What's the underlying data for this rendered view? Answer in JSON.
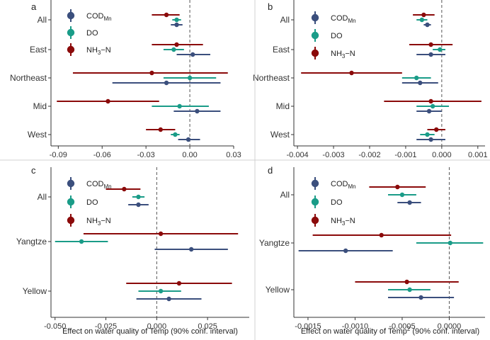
{
  "chart_data": [
    {
      "type": "dot-errorbar",
      "panel": "a",
      "categories": [
        "All",
        "East",
        "Northeast",
        "Mid",
        "West"
      ],
      "xlim": [
        -0.095,
        0.03
      ],
      "xticks": [
        -0.09,
        -0.06,
        -0.03,
        0.0,
        0.03
      ],
      "xtick_labels": [
        "-0.09",
        "-0.06",
        "-0.03",
        "0.00",
        "0.03"
      ],
      "xlabel": "",
      "series": [
        {
          "name": "NH3-N",
          "color": "#8b0a0a",
          "points": [
            {
              "category": "All",
              "value": -0.016,
              "low": -0.026,
              "high": -0.007
            },
            {
              "category": "East",
              "value": -0.009,
              "low": -0.026,
              "high": 0.009
            },
            {
              "category": "Northeast",
              "value": -0.026,
              "low": -0.08,
              "high": 0.026
            },
            {
              "category": "Mid",
              "value": -0.056,
              "low": -0.091,
              "high": -0.021
            },
            {
              "category": "West",
              "value": -0.02,
              "low": -0.03,
              "high": -0.01
            }
          ]
        },
        {
          "name": "DO",
          "color": "#1a9c88",
          "points": [
            {
              "category": "All",
              "value": -0.009,
              "low": -0.012,
              "high": -0.006
            },
            {
              "category": "East",
              "value": -0.011,
              "low": -0.018,
              "high": -0.004
            },
            {
              "category": "Northeast",
              "value": 0.0,
              "low": -0.018,
              "high": 0.018
            },
            {
              "category": "Mid",
              "value": -0.007,
              "low": -0.026,
              "high": 0.013
            },
            {
              "category": "West",
              "value": -0.01,
              "low": -0.013,
              "high": -0.007
            }
          ]
        },
        {
          "name": "CODMn",
          "color": "#3b4f7d",
          "points": [
            {
              "category": "All",
              "value": -0.009,
              "low": -0.013,
              "high": -0.005
            },
            {
              "category": "East",
              "value": 0.002,
              "low": -0.009,
              "high": 0.014
            },
            {
              "category": "Northeast",
              "value": -0.016,
              "low": -0.053,
              "high": 0.021
            },
            {
              "category": "Mid",
              "value": 0.005,
              "low": -0.011,
              "high": 0.021
            },
            {
              "category": "West",
              "value": -0.001,
              "low": -0.008,
              "high": 0.007
            }
          ]
        }
      ]
    },
    {
      "type": "dot-errorbar",
      "panel": "b",
      "categories": [
        "All",
        "East",
        "Northeast",
        "Mid",
        "West"
      ],
      "xlim": [
        -0.0041,
        0.0012
      ],
      "xticks": [
        -0.004,
        -0.003,
        -0.002,
        -0.001,
        0.0,
        0.001
      ],
      "xtick_labels": [
        "-0.004",
        "-0.003",
        "-0.002",
        "-0.001",
        "0.000",
        "0.001"
      ],
      "xlabel": "",
      "series": [
        {
          "name": "NH3-N",
          "color": "#8b0a0a",
          "points": [
            {
              "category": "All",
              "value": -0.0005,
              "low": -0.0008,
              "high": -0.0002
            },
            {
              "category": "East",
              "value": -0.0003,
              "low": -0.0009,
              "high": 0.0003
            },
            {
              "category": "Northeast",
              "value": -0.0025,
              "low": -0.0039,
              "high": -0.0011
            },
            {
              "category": "Mid",
              "value": -0.0003,
              "low": -0.0016,
              "high": 0.0011
            },
            {
              "category": "West",
              "value": -0.00015,
              "low": -0.0004,
              "high": 0.0001
            }
          ]
        },
        {
          "name": "DO",
          "color": "#1a9c88",
          "points": [
            {
              "category": "All",
              "value": -0.00055,
              "low": -0.0007,
              "high": -0.0004
            },
            {
              "category": "East",
              "value": -5e-05,
              "low": -0.00025,
              "high": 0.0001
            },
            {
              "category": "Northeast",
              "value": -0.0007,
              "low": -0.0011,
              "high": -0.0003
            },
            {
              "category": "Mid",
              "value": -0.00025,
              "low": -0.0007,
              "high": 0.0002
            },
            {
              "category": "West",
              "value": -0.0004,
              "low": -0.0006,
              "high": -0.0002
            }
          ]
        },
        {
          "name": "CODMn",
          "color": "#3b4f7d",
          "points": [
            {
              "category": "All",
              "value": -0.0004,
              "low": -0.0005,
              "high": -0.0003
            },
            {
              "category": "East",
              "value": -0.0003,
              "low": -0.0007,
              "high": 0.0001
            },
            {
              "category": "Northeast",
              "value": -0.0006,
              "low": -0.0011,
              "high": -0.0001
            },
            {
              "category": "Mid",
              "value": -0.00035,
              "low": -0.0007,
              "high": 0.0
            },
            {
              "category": "West",
              "value": -0.0003,
              "low": -0.0007,
              "high": 0.0001
            }
          ]
        }
      ]
    },
    {
      "type": "dot-errorbar",
      "panel": "c",
      "categories": [
        "All",
        "Yangtze",
        "Yellow"
      ],
      "xlim": [
        -0.052,
        0.0455
      ],
      "xticks": [
        -0.05,
        -0.025,
        0.0,
        0.025
      ],
      "xtick_labels": [
        "-0.050",
        "-0.025",
        "0.000",
        "0.025"
      ],
      "xlabel": "Effect on water quality of Temp (90% conf. interval)",
      "series": [
        {
          "name": "NH3-N",
          "color": "#8b0a0a",
          "points": [
            {
              "category": "All",
              "value": -0.016,
              "low": -0.025,
              "high": -0.008
            },
            {
              "category": "Yangtze",
              "value": 0.002,
              "low": -0.036,
              "high": 0.04
            },
            {
              "category": "Yellow",
              "value": 0.011,
              "low": -0.015,
              "high": 0.037
            }
          ]
        },
        {
          "name": "DO",
          "color": "#1a9c88",
          "points": [
            {
              "category": "All",
              "value": -0.009,
              "low": -0.012,
              "high": -0.006
            },
            {
              "category": "Yangtze",
              "value": -0.037,
              "low": -0.05,
              "high": -0.024
            },
            {
              "category": "Yellow",
              "value": 0.002,
              "low": -0.009,
              "high": 0.012
            }
          ]
        },
        {
          "name": "CODMn",
          "color": "#3b4f7d",
          "points": [
            {
              "category": "All",
              "value": -0.009,
              "low": -0.014,
              "high": -0.004
            },
            {
              "category": "Yangtze",
              "value": 0.017,
              "low": -0.001,
              "high": 0.035
            },
            {
              "category": "Yellow",
              "value": 0.006,
              "low": -0.01,
              "high": 0.022
            }
          ]
        }
      ]
    },
    {
      "type": "dot-errorbar",
      "panel": "d",
      "categories": [
        "All",
        "Yangtze",
        "Yellow"
      ],
      "xlim": [
        -0.00165,
        0.00038
      ],
      "xticks": [
        -0.0015,
        -0.001,
        -0.0005,
        0.0
      ],
      "xtick_labels": [
        "-0.0015",
        "-0.0010",
        "-0.0005",
        "0.0000"
      ],
      "xlabel_main": "Effect on water quality of Temp",
      "xlabel_sup": "2",
      "xlabel_suffix": " (90% conf. interval)",
      "series": [
        {
          "name": "NH3-N",
          "color": "#8b0a0a",
          "points": [
            {
              "category": "All",
              "value": -0.00055,
              "low": -0.00085,
              "high": -0.00025
            },
            {
              "category": "Yangtze",
              "value": -0.00072,
              "low": -0.00145,
              "high": 2e-05
            },
            {
              "category": "Yellow",
              "value": -0.00045,
              "low": -0.001,
              "high": 0.0001
            }
          ]
        },
        {
          "name": "DO",
          "color": "#1a9c88",
          "points": [
            {
              "category": "All",
              "value": -0.0005,
              "low": -0.00065,
              "high": -0.00035
            },
            {
              "category": "Yangtze",
              "value": 1e-05,
              "low": -0.00035,
              "high": 0.00036
            },
            {
              "category": "Yellow",
              "value": -0.00042,
              "low": -0.00065,
              "high": -0.0002
            }
          ]
        },
        {
          "name": "CODMn",
          "color": "#3b4f7d",
          "points": [
            {
              "category": "All",
              "value": -0.00042,
              "low": -0.00055,
              "high": -0.0003
            },
            {
              "category": "Yangtze",
              "value": -0.0011,
              "low": -0.0016,
              "high": -0.0006
            },
            {
              "category": "Yellow",
              "value": -0.0003,
              "low": -0.00065,
              "high": 5e-05
            }
          ]
        }
      ]
    }
  ],
  "legend": [
    {
      "key": "CODMn",
      "main": "COD",
      "sub": "Mn",
      "color": "#3b4f7d"
    },
    {
      "key": "DO",
      "main": "DO",
      "sub": "",
      "color": "#1a9c88"
    },
    {
      "key": "NH3-N",
      "main": "NH",
      "sub": "3",
      "suffix": "−N",
      "color": "#8b0a0a"
    }
  ]
}
